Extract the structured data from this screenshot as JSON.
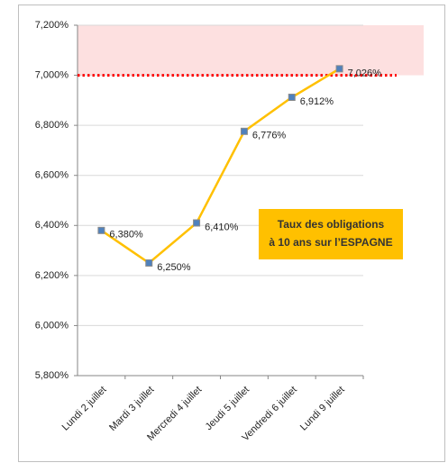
{
  "chart_data": {
    "type": "line",
    "categories": [
      "Lundi 2 juillet",
      "Mardi 3 juillet",
      "Mercredi 4 juillet",
      "Jeudi 5 juillet",
      "Vendredi 6 juillet",
      "Lundi 9 juillet"
    ],
    "values": [
      6.38,
      6.25,
      6.41,
      6.776,
      6.912,
      7.026
    ],
    "value_labels": [
      "6,380%",
      "6,250%",
      "6,410%",
      "6,776%",
      "6,912%",
      "7,026%"
    ],
    "color": "#ffc000",
    "marker_color": "#4f81bd",
    "ylim": [
      5.8,
      7.2
    ],
    "yticks": [
      {
        "value": 5.8,
        "label": "5,800%"
      },
      {
        "value": 6.0,
        "label": "6,000%"
      },
      {
        "value": 6.2,
        "label": "6,200%"
      },
      {
        "value": 6.4,
        "label": "6,400%"
      },
      {
        "value": 6.6,
        "label": "6,600%"
      },
      {
        "value": 6.8,
        "label": "6,800%"
      },
      {
        "value": 7.0,
        "label": "7,000%"
      },
      {
        "value": 7.2,
        "label": "7,200%"
      }
    ],
    "grid": true,
    "reference_line": {
      "value": 7.0,
      "color": "#ff0000"
    },
    "shaded_band": {
      "range": [
        7.0,
        7.2
      ],
      "color": "#fde0e0"
    },
    "annotation": {
      "lines": [
        "Taux des obligations",
        "à 10 ans sur l’ESPAGNE"
      ],
      "color": "#ffc000"
    }
  }
}
